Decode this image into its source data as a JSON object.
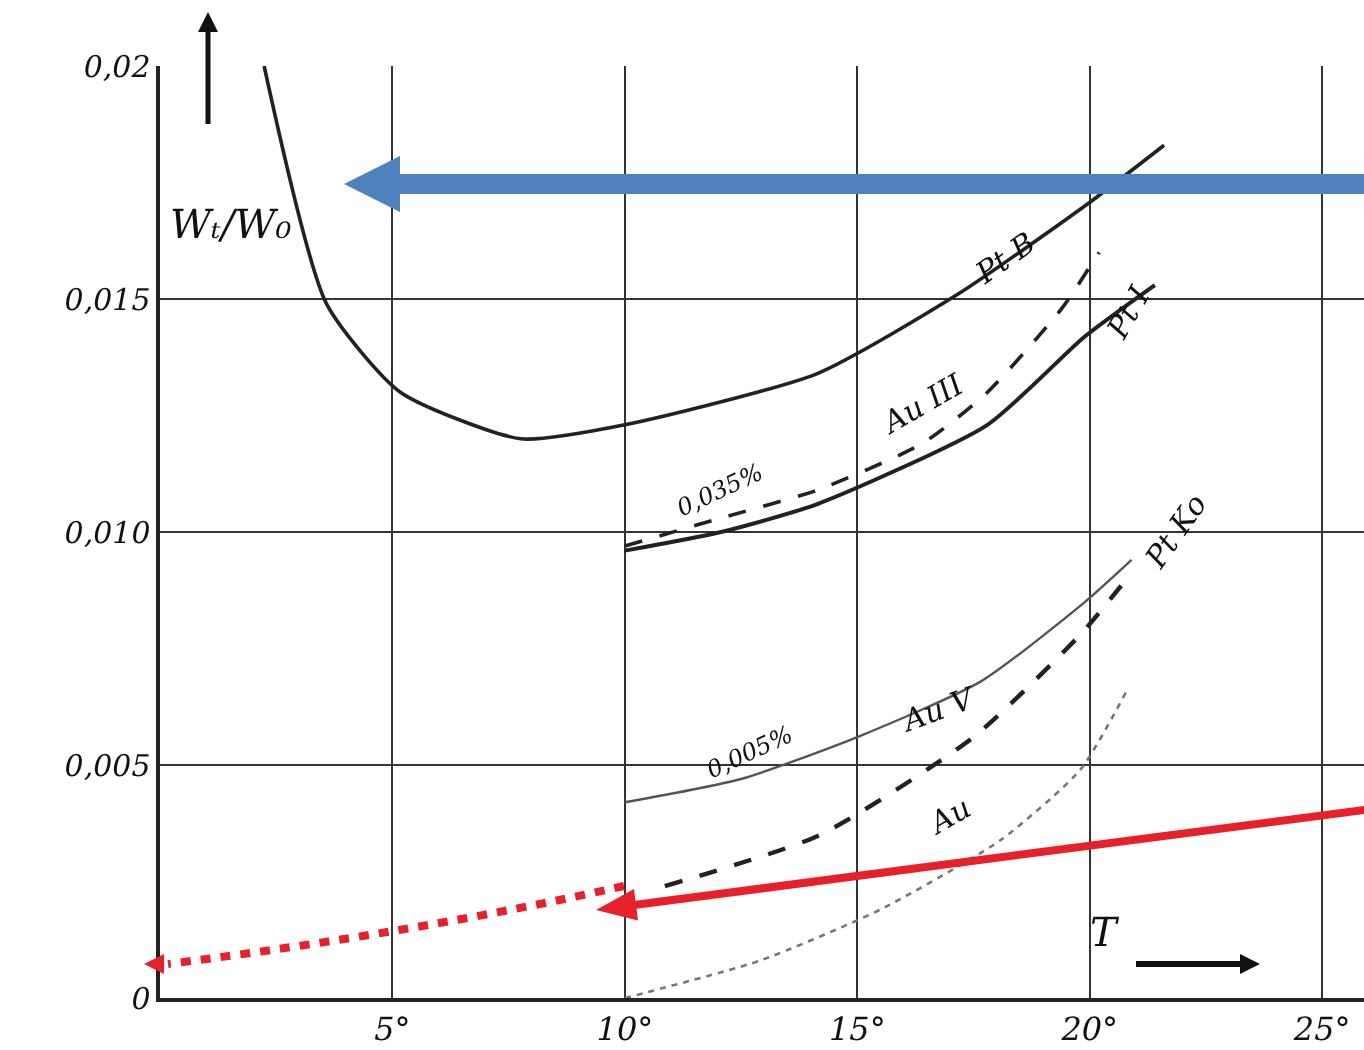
{
  "chart_data": {
    "type": "line",
    "xlabel": "T",
    "ylabel": "Wₜ/W₀",
    "xlim": [
      0,
      25.9
    ],
    "ylim": [
      0,
      0.02
    ],
    "xticks": [
      {
        "value": 5,
        "label": "5°"
      },
      {
        "value": 10,
        "label": "10°"
      },
      {
        "value": 15,
        "label": "15°"
      },
      {
        "value": 20,
        "label": "20°"
      },
      {
        "value": 25,
        "label": "25°"
      }
    ],
    "yticks": [
      {
        "value": 0,
        "label": "0"
      },
      {
        "value": 0.005,
        "label": "0,005"
      },
      {
        "value": 0.01,
        "label": "0,010"
      },
      {
        "value": 0.015,
        "label": "0,015"
      },
      {
        "value": 0.02,
        "label": "0,02"
      }
    ],
    "grid": true,
    "marker": "none",
    "legend": false,
    "series": [
      {
        "name": "Pt B",
        "color": "#222222",
        "line_style": "solid",
        "x": [
          2.24,
          3.58,
          5.17,
          7.76,
          10,
          14.14,
          17.16,
          19.9,
          21.6
        ],
        "values": [
          0.02,
          0.0149,
          0.013,
          0.012,
          0.0123,
          0.0134,
          0.0151,
          0.017,
          0.0183
        ]
      },
      {
        "name": "Pt I",
        "color": "#222222",
        "line_style": "solid",
        "x": [
          10,
          12.07,
          14.14,
          17.8,
          19.9,
          21.4
        ],
        "values": [
          0.0096,
          0.01,
          0.0106,
          0.0123,
          0.0142,
          0.0153
        ]
      },
      {
        "name": "Au III",
        "color": "#222222",
        "line_style": "dashed",
        "x": [
          10,
          12.07,
          14.14,
          16.4,
          17.8,
          19.4,
          20.2
        ],
        "values": [
          0.0097,
          0.0103,
          0.0109,
          0.0119,
          0.013,
          0.0148,
          0.016
        ]
      },
      {
        "name": "Pt Ko",
        "color": "#555555",
        "line_style": "solid",
        "x": [
          10,
          12.5,
          15,
          17.67,
          19.9,
          20.9
        ],
        "values": [
          0.0042,
          0.0047,
          0.0056,
          0.0068,
          0.0085,
          0.0094
        ]
      },
      {
        "name": "Au V",
        "color": "#222222",
        "line_style": "dashed",
        "x": [
          10.86,
          14.2,
          17.5,
          19.8,
          20.8
        ],
        "values": [
          0.0024,
          0.0035,
          0.0056,
          0.0078,
          0.009
        ]
      },
      {
        "name": "Au",
        "color": "#777777",
        "line_style": "dotted",
        "x": [
          10,
          12.9,
          15.5,
          18.1,
          19.8,
          20.8
        ],
        "values": [
          0,
          0.0008,
          0.0019,
          0.0034,
          0.0049,
          0.0066
        ]
      }
    ],
    "annotations": [
      "0,035%",
      "0,005%"
    ]
  }
}
